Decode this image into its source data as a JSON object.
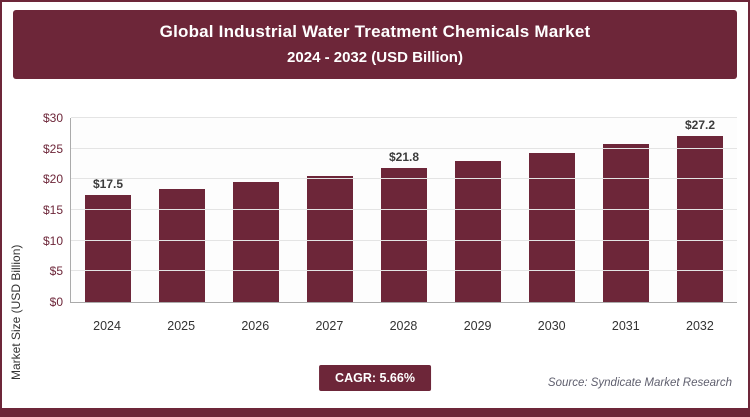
{
  "header": {
    "title": "Global Industrial Water Treatment Chemicals Market",
    "subtitle": "2024 - 2032 (USD Billion)"
  },
  "chart_data": {
    "type": "bar",
    "title": "Global Industrial Water Treatment Chemicals Market",
    "subtitle": "2024 - 2032 (USD Billion)",
    "categories": [
      "2024",
      "2025",
      "2026",
      "2027",
      "2028",
      "2029",
      "2030",
      "2031",
      "2032"
    ],
    "values": [
      17.5,
      18.5,
      19.5,
      20.6,
      21.8,
      23.0,
      24.3,
      25.7,
      27.2
    ],
    "bar_labels": [
      "$17.5",
      null,
      null,
      null,
      "$21.8",
      null,
      null,
      null,
      "$27.2"
    ],
    "xlabel": "",
    "ylabel": "Market Size (USD Billion)",
    "ylim": [
      0,
      30
    ],
    "ytick_step": 5,
    "ytick_labels": [
      "$0",
      "$5",
      "$10",
      "$15",
      "$20",
      "$25",
      "$30"
    ],
    "grid": true,
    "legend": false,
    "bar_color": "#6d2639"
  },
  "footer": {
    "cagr_label": "CAGR: 5.66%",
    "source": "Source: Syndicate Market Research"
  },
  "colors": {
    "accent": "#6d2639",
    "grid": "#e4e4e4",
    "axis": "#aaaaaa",
    "value_label": "#3c3c3c"
  }
}
